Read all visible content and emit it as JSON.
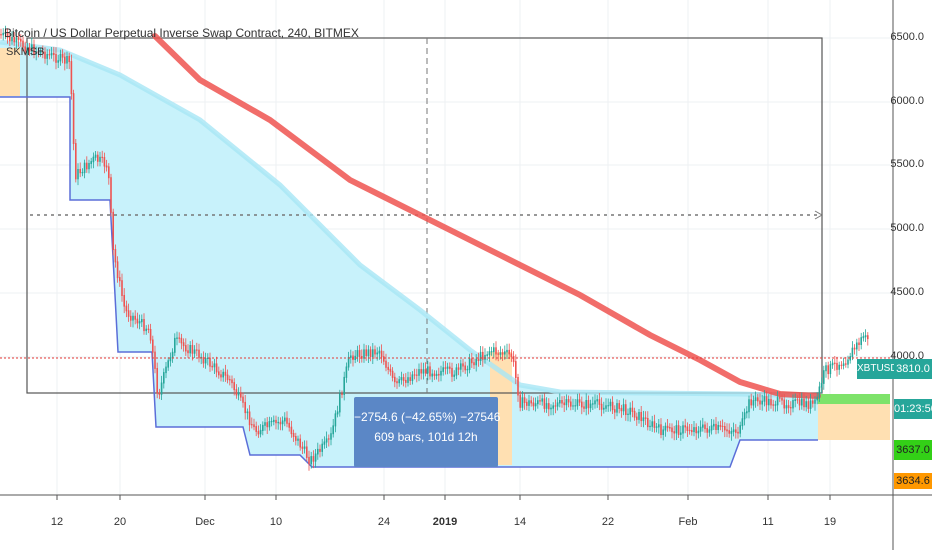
{
  "chart": {
    "title": "Bitcoin / US Dollar Perpetual Inverse Swap Contract, 240, BITMEX",
    "indicator": "SKMSB",
    "symbol": "XBTUSD",
    "colors": {
      "background": "#ffffff",
      "grid": "#eef0f3",
      "bullish_candle": "#26a69a",
      "bearish_candle": "#ef5350",
      "moving_average_slow": "#ef5350",
      "moving_average_fast": "#a8e6f5",
      "cloud_fill": "#c8f2fb",
      "support_line": "#5b6ed8",
      "highlight_band": "#ffe0b2",
      "current_price_line": "#e53935",
      "measure_box": "#5b87c6"
    },
    "y_axis_ticks": [
      "6500.0",
      "6000.0",
      "5500.0",
      "5000.0",
      "4500.0",
      "4000.0"
    ],
    "x_axis_ticks": [
      {
        "label": "12",
        "bold": false
      },
      {
        "label": "20",
        "bold": false
      },
      {
        "label": "Dec",
        "bold": false
      },
      {
        "label": "10",
        "bold": false
      },
      {
        "label": "24",
        "bold": false
      },
      {
        "label": "2019",
        "bold": true
      },
      {
        "label": "14",
        "bold": false
      },
      {
        "label": "22",
        "bold": false
      },
      {
        "label": "Feb",
        "bold": false
      },
      {
        "label": "11",
        "bold": false
      },
      {
        "label": "19",
        "bold": false
      }
    ],
    "price_labels": {
      "last_price": "3810.0",
      "countdown": "01:23:50",
      "level_green": "3637.0",
      "level_orange": "3634.6"
    },
    "measure_tool": {
      "line1": "−2754.6 (−42.65%) −27546",
      "line2": "609 bars, 101d 12h"
    }
  }
}
